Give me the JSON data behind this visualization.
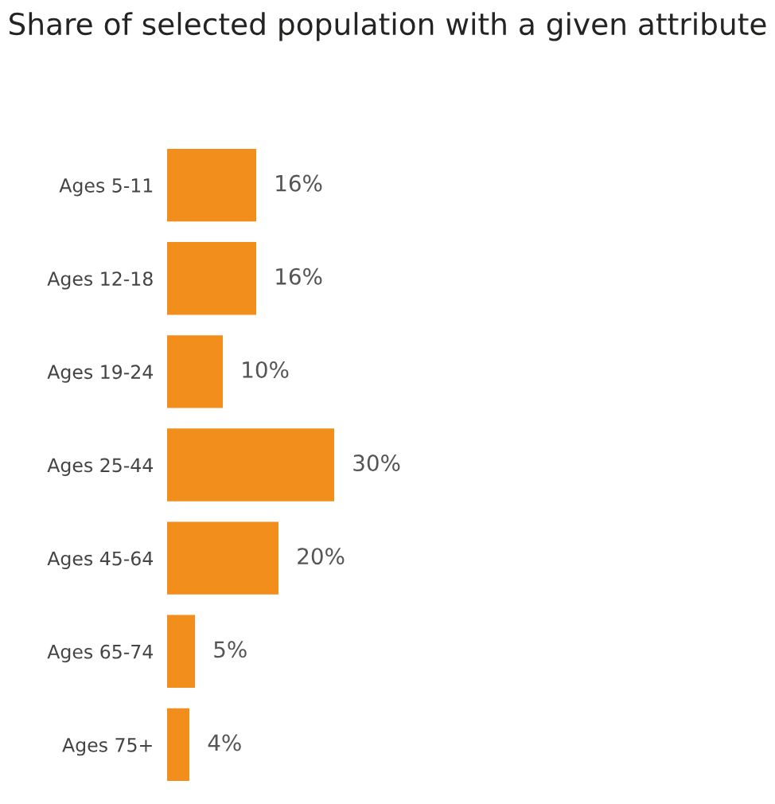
{
  "chart_data": {
    "type": "bar",
    "orientation": "horizontal",
    "title": "Share of selected population with a given attribute",
    "categories": [
      "Ages 5-11",
      "Ages 12-18",
      "Ages 19-24",
      "Ages 25-44",
      "Ages 45-64",
      "Ages 65-74",
      "Ages 75+"
    ],
    "values": [
      16,
      16,
      10,
      30,
      20,
      5,
      4
    ],
    "value_labels": [
      "16%",
      "16%",
      "10%",
      "30%",
      "20%",
      "5%",
      "4%"
    ],
    "color": "#f28e1c",
    "grid": false,
    "legend": false
  }
}
